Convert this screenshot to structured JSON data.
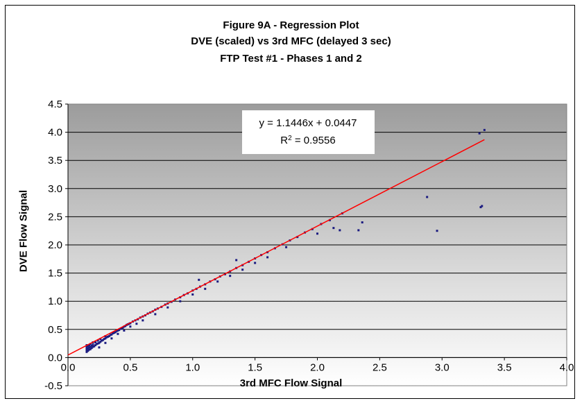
{
  "chart_data": {
    "type": "scatter",
    "title": [
      "Figure 9A - Regression Plot",
      "DVE (scaled)  vs 3rd MFC (delayed 3 sec)",
      "FTP Test #1 - Phases 1 and 2"
    ],
    "xlabel": "3rd MFC Flow Signal",
    "ylabel": "DVE Flow Signal",
    "xlim": [
      0,
      4
    ],
    "ylim": [
      -0.5,
      4.5
    ],
    "x_ticks": [
      "0.0",
      "0.5",
      "1.0",
      "1.5",
      "2.0",
      "2.5",
      "3.0",
      "3.5",
      "4.0"
    ],
    "y_ticks": [
      "-0.5",
      "0.0",
      "0.5",
      "1.0",
      "1.5",
      "2.0",
      "2.5",
      "3.0",
      "3.5",
      "4.0",
      "4.5"
    ],
    "grid": true,
    "series": [
      {
        "color": "#1a1a80",
        "points": [
          [
            0.15,
            0.1
          ],
          [
            0.15,
            0.13
          ],
          [
            0.15,
            0.16
          ],
          [
            0.15,
            0.19
          ],
          [
            0.15,
            0.22
          ],
          [
            0.16,
            0.12
          ],
          [
            0.16,
            0.16
          ],
          [
            0.16,
            0.2
          ],
          [
            0.17,
            0.14
          ],
          [
            0.17,
            0.18
          ],
          [
            0.17,
            0.22
          ],
          [
            0.18,
            0.15
          ],
          [
            0.18,
            0.19
          ],
          [
            0.18,
            0.24
          ],
          [
            0.19,
            0.17
          ],
          [
            0.19,
            0.21
          ],
          [
            0.2,
            0.19
          ],
          [
            0.2,
            0.23
          ],
          [
            0.2,
            0.27
          ],
          [
            0.21,
            0.2
          ],
          [
            0.22,
            0.22
          ],
          [
            0.22,
            0.27
          ],
          [
            0.23,
            0.24
          ],
          [
            0.24,
            0.25
          ],
          [
            0.24,
            0.3
          ],
          [
            0.25,
            0.26
          ],
          [
            0.26,
            0.28
          ],
          [
            0.26,
            0.33
          ],
          [
            0.27,
            0.3
          ],
          [
            0.28,
            0.31
          ],
          [
            0.29,
            0.33
          ],
          [
            0.3,
            0.34
          ],
          [
            0.3,
            0.38
          ],
          [
            0.31,
            0.36
          ],
          [
            0.32,
            0.37
          ],
          [
            0.33,
            0.38
          ],
          [
            0.34,
            0.4
          ],
          [
            0.35,
            0.41
          ],
          [
            0.36,
            0.43
          ],
          [
            0.37,
            0.44
          ],
          [
            0.38,
            0.45
          ],
          [
            0.39,
            0.47
          ],
          [
            0.4,
            0.48
          ],
          [
            0.41,
            0.49
          ],
          [
            0.42,
            0.51
          ],
          [
            0.43,
            0.52
          ],
          [
            0.44,
            0.53
          ],
          [
            0.45,
            0.55
          ],
          [
            0.46,
            0.56
          ],
          [
            0.47,
            0.58
          ],
          [
            0.48,
            0.59
          ],
          [
            0.49,
            0.6
          ],
          [
            0.5,
            0.61
          ],
          [
            0.52,
            0.64
          ],
          [
            0.54,
            0.66
          ],
          [
            0.56,
            0.68
          ],
          [
            0.58,
            0.71
          ],
          [
            0.6,
            0.73
          ],
          [
            0.62,
            0.75
          ],
          [
            0.64,
            0.78
          ],
          [
            0.66,
            0.8
          ],
          [
            0.68,
            0.82
          ],
          [
            0.7,
            0.85
          ],
          [
            0.72,
            0.87
          ],
          [
            0.75,
            0.9
          ],
          [
            0.78,
            0.94
          ],
          [
            0.8,
            0.96
          ],
          [
            0.83,
            0.99
          ],
          [
            0.86,
            1.03
          ],
          [
            0.9,
            1.07
          ],
          [
            0.93,
            1.11
          ],
          [
            0.96,
            1.14
          ],
          [
            1.0,
            1.19
          ],
          [
            1.03,
            1.22
          ],
          [
            1.06,
            1.26
          ],
          [
            1.1,
            1.3
          ],
          [
            1.14,
            1.35
          ],
          [
            1.18,
            1.39
          ],
          [
            1.22,
            1.44
          ],
          [
            1.26,
            1.48
          ],
          [
            1.3,
            1.53
          ],
          [
            1.35,
            1.59
          ],
          [
            1.4,
            1.64
          ],
          [
            1.45,
            1.7
          ],
          [
            1.5,
            1.76
          ],
          [
            1.55,
            1.82
          ],
          [
            1.6,
            1.87
          ],
          [
            1.66,
            1.94
          ],
          [
            1.72,
            2.01
          ],
          [
            1.78,
            2.08
          ],
          [
            1.84,
            2.14
          ],
          [
            1.9,
            2.22
          ],
          [
            1.96,
            2.28
          ],
          [
            2.03,
            2.37
          ],
          [
            2.1,
            2.44
          ],
          [
            2.2,
            2.56
          ],
          [
            0.25,
            0.18
          ],
          [
            0.3,
            0.26
          ],
          [
            0.35,
            0.34
          ],
          [
            0.4,
            0.42
          ],
          [
            0.45,
            0.48
          ],
          [
            0.5,
            0.55
          ],
          [
            0.55,
            0.6
          ],
          [
            0.6,
            0.66
          ],
          [
            0.7,
            0.77
          ],
          [
            0.8,
            0.89
          ],
          [
            0.9,
            1.0
          ],
          [
            1.0,
            1.12
          ],
          [
            1.1,
            1.22
          ],
          [
            1.2,
            1.35
          ],
          [
            1.3,
            1.45
          ],
          [
            1.4,
            1.56
          ],
          [
            1.5,
            1.68
          ],
          [
            1.6,
            1.78
          ],
          [
            1.35,
            1.73
          ],
          [
            1.05,
            1.38
          ],
          [
            1.75,
            1.96
          ],
          [
            2.0,
            2.2
          ],
          [
            2.13,
            2.3
          ],
          [
            2.18,
            2.26
          ],
          [
            2.33,
            2.26
          ],
          [
            2.36,
            2.4
          ],
          [
            2.88,
            2.85
          ],
          [
            2.96,
            2.25
          ],
          [
            3.31,
            2.67
          ],
          [
            3.32,
            2.69
          ],
          [
            3.3,
            3.98
          ],
          [
            3.34,
            4.04
          ]
        ]
      }
    ],
    "trendline": {
      "slope": 1.1446,
      "intercept": 0.0447,
      "x_range": [
        0,
        3.34
      ],
      "color": "#ff0000"
    },
    "annotation": {
      "equation": "y = 1.1446x + 0.0447",
      "r2_prefix": "R",
      "r2_sup": "2",
      "r2_suffix": " = 0.9556"
    }
  }
}
